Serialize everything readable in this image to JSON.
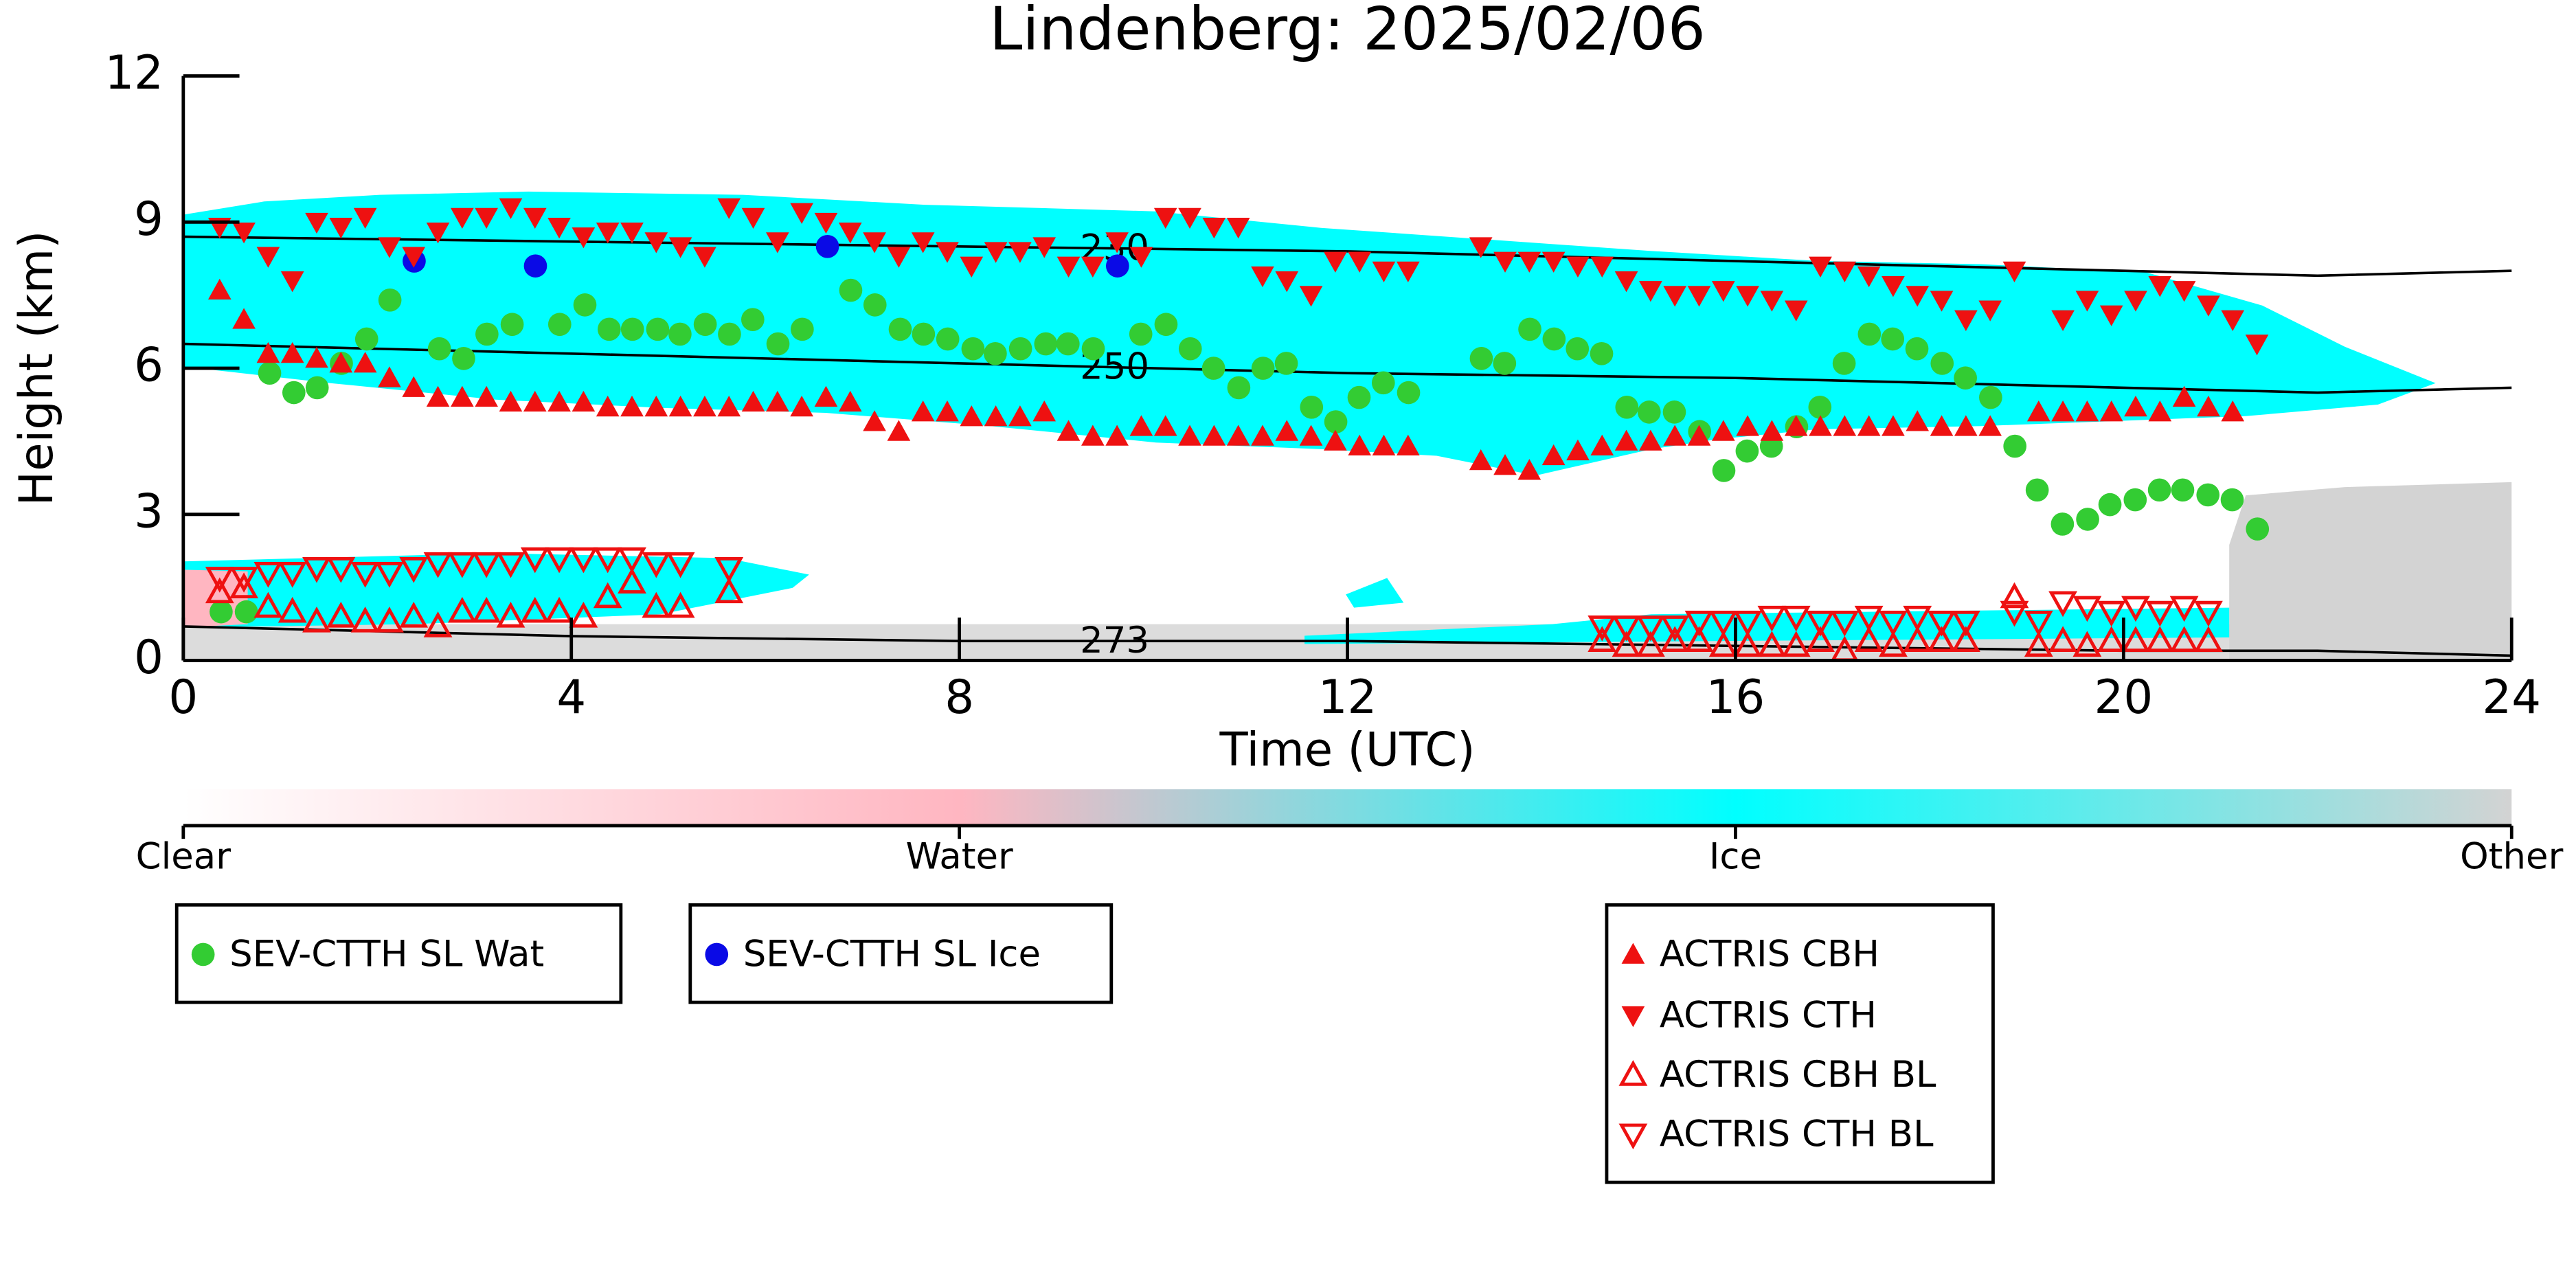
{
  "chart_data": {
    "type": "scatter",
    "title": "Lindenberg: 2025/02/06",
    "xlabel": "Time (UTC)",
    "ylabel": "Height (km)",
    "xlim": [
      0,
      24
    ],
    "xticks": [
      0,
      4,
      8,
      12,
      16,
      20,
      24
    ],
    "ylim": [
      0,
      12
    ],
    "yticks": [
      0,
      3,
      6,
      9,
      12
    ],
    "contours": [
      {
        "level": 230,
        "x": [
          0,
          4,
          8,
          12,
          16,
          20,
          22,
          24
        ],
        "y": [
          8.7,
          8.6,
          8.5,
          8.4,
          8.2,
          8.0,
          7.9,
          8.0
        ]
      },
      {
        "level": 250,
        "x": [
          0,
          4,
          8,
          12,
          16,
          20,
          22,
          24
        ],
        "y": [
          6.5,
          6.3,
          6.1,
          5.9,
          5.8,
          5.6,
          5.5,
          5.6
        ]
      },
      {
        "level": 273,
        "x": [
          0,
          4,
          8,
          12,
          16,
          20,
          22,
          24
        ],
        "y": [
          0.7,
          0.5,
          0.4,
          0.4,
          0.3,
          0.2,
          0.2,
          0.1
        ]
      }
    ],
    "colorbar": {
      "labels": [
        "Clear",
        "Water",
        "Ice",
        "Other"
      ],
      "colors": [
        "#ffffff",
        "#ffb6c1",
        "#00ffff",
        "#d3d3d3"
      ]
    },
    "series": [
      {
        "name": "SEV-CTTH SL Wat",
        "color": "#33cc33",
        "marker": "circle",
        "filled": true,
        "x": [
          0.39,
          0.65,
          0.89,
          1.14,
          1.38,
          1.63,
          1.89,
          2.13,
          2.64,
          2.89,
          3.13,
          3.39,
          3.88,
          4.14,
          4.39,
          4.63,
          4.89,
          5.12,
          5.38,
          5.63,
          5.87,
          6.13,
          6.38,
          6.88,
          7.13,
          7.39,
          7.63,
          7.88,
          8.14,
          8.37,
          8.63,
          8.89,
          9.12,
          9.38,
          9.87,
          10.13,
          10.38,
          10.62,
          10.88,
          11.13,
          11.37,
          11.63,
          11.88,
          12.12,
          12.37,
          12.63,
          13.38,
          13.62,
          13.88,
          14.13,
          14.37,
          14.62,
          14.88,
          15.11,
          15.37,
          15.63,
          15.88,
          16.12,
          16.37,
          16.63,
          16.87,
          17.12,
          17.38,
          17.62,
          17.87,
          18.13,
          18.37,
          18.63,
          18.88,
          19.11,
          19.37,
          19.63,
          19.86,
          20.12,
          20.37,
          20.61,
          20.87,
          21.12,
          21.38
        ],
        "y": [
          1.0,
          1.0,
          5.9,
          5.5,
          5.6,
          6.1,
          6.6,
          7.4,
          6.4,
          6.2,
          6.7,
          6.9,
          6.9,
          7.3,
          6.8,
          6.8,
          6.8,
          6.7,
          6.9,
          6.7,
          7.0,
          6.5,
          6.8,
          7.6,
          7.3,
          6.8,
          6.7,
          6.6,
          6.4,
          6.3,
          6.4,
          6.5,
          6.5,
          6.4,
          6.7,
          6.9,
          6.4,
          6.0,
          5.6,
          6.0,
          6.1,
          5.2,
          4.9,
          5.4,
          5.7,
          5.5,
          6.2,
          6.1,
          6.8,
          6.6,
          6.4,
          6.3,
          5.2,
          5.1,
          5.1,
          4.7,
          3.9,
          4.3,
          4.4,
          4.8,
          5.2,
          6.1,
          6.7,
          6.6,
          6.4,
          6.1,
          5.8,
          5.4,
          4.4,
          3.5,
          2.8,
          2.9,
          3.2,
          3.3,
          3.5,
          3.5,
          3.4,
          3.3,
          2.7
        ]
      },
      {
        "name": "SEV-CTTH SL Ice",
        "color": "#0a0ae6",
        "marker": "circle",
        "filled": true,
        "x": [
          2.38,
          3.63,
          6.64,
          9.63
        ],
        "y": [
          8.2,
          8.1,
          8.5,
          8.1
        ]
      },
      {
        "name": "ACTRIS CBH",
        "color": "#ee1111",
        "marker": "triangle-up",
        "filled": true,
        "x": [
          0.375,
          0.625,
          0.875,
          1.125,
          1.375,
          1.625,
          1.875,
          2.125,
          2.375,
          2.625,
          2.875,
          3.125,
          3.375,
          3.625,
          3.875,
          4.125,
          4.375,
          4.625,
          4.875,
          5.125,
          5.375,
          5.625,
          5.875,
          6.125,
          6.375,
          6.625,
          6.875,
          7.125,
          7.375,
          7.625,
          7.875,
          8.125,
          8.375,
          8.625,
          8.875,
          9.125,
          9.375,
          9.625,
          9.875,
          10.125,
          10.375,
          10.625,
          10.875,
          11.125,
          11.375,
          11.625,
          11.875,
          12.125,
          12.375,
          12.625,
          13.375,
          13.625,
          13.875,
          14.125,
          14.375,
          14.625,
          14.875,
          15.125,
          15.375,
          15.625,
          15.875,
          16.125,
          16.375,
          16.625,
          16.875,
          17.125,
          17.375,
          17.625,
          17.875,
          18.125,
          18.375,
          18.625,
          19.125,
          19.375,
          19.625,
          19.875,
          20.125,
          20.375,
          20.625,
          20.875,
          21.125
        ],
        "y": [
          7.6,
          7.0,
          6.3,
          6.3,
          6.2,
          6.1,
          6.1,
          5.8,
          5.6,
          5.4,
          5.4,
          5.4,
          5.3,
          5.3,
          5.3,
          5.3,
          5.2,
          5.2,
          5.2,
          5.2,
          5.2,
          5.2,
          5.3,
          5.3,
          5.2,
          5.4,
          5.3,
          4.9,
          4.7,
          5.1,
          5.1,
          5.0,
          5.0,
          5.0,
          5.1,
          4.7,
          4.6,
          4.6,
          4.8,
          4.8,
          4.6,
          4.6,
          4.6,
          4.6,
          4.7,
          4.6,
          4.5,
          4.4,
          4.4,
          4.4,
          4.1,
          4.0,
          3.9,
          4.2,
          4.3,
          4.4,
          4.5,
          4.5,
          4.6,
          4.6,
          4.7,
          4.8,
          4.7,
          4.8,
          4.8,
          4.8,
          4.8,
          4.8,
          4.9,
          4.8,
          4.8,
          4.8,
          5.1,
          5.1,
          5.1,
          5.1,
          5.2,
          5.1,
          5.4,
          5.2,
          5.1
        ]
      },
      {
        "name": "ACTRIS CTH",
        "color": "#ee1111",
        "marker": "triangle-down",
        "filled": true,
        "x": [
          0.375,
          0.625,
          0.875,
          1.125,
          1.375,
          1.625,
          1.875,
          2.125,
          2.375,
          2.625,
          2.875,
          3.125,
          3.375,
          3.625,
          3.875,
          4.125,
          4.375,
          4.625,
          4.875,
          5.125,
          5.375,
          5.625,
          5.875,
          6.125,
          6.375,
          6.625,
          6.875,
          7.125,
          7.375,
          7.625,
          7.875,
          8.125,
          8.375,
          8.625,
          8.875,
          9.125,
          9.375,
          9.625,
          9.875,
          10.125,
          10.375,
          10.625,
          10.875,
          11.125,
          11.375,
          11.625,
          11.875,
          12.125,
          12.375,
          12.625,
          13.375,
          13.625,
          13.875,
          14.125,
          14.375,
          14.625,
          14.875,
          15.125,
          15.375,
          15.625,
          15.875,
          16.125,
          16.375,
          16.625,
          16.875,
          17.125,
          17.375,
          17.625,
          17.875,
          18.125,
          18.375,
          18.625,
          18.875,
          19.375,
          19.625,
          19.875,
          20.125,
          20.375,
          20.625,
          20.875,
          21.125,
          21.375
        ],
        "y": [
          8.9,
          8.8,
          8.3,
          7.8,
          9.0,
          8.9,
          9.1,
          8.5,
          8.3,
          8.8,
          9.1,
          9.1,
          9.3,
          9.1,
          8.9,
          8.7,
          8.8,
          8.8,
          8.6,
          8.5,
          8.3,
          9.3,
          9.1,
          8.6,
          9.2,
          9.0,
          8.8,
          8.6,
          8.3,
          8.6,
          8.4,
          8.1,
          8.4,
          8.4,
          8.5,
          8.1,
          8.1,
          8.6,
          8.3,
          9.1,
          9.1,
          8.9,
          8.9,
          7.9,
          7.8,
          7.5,
          8.2,
          8.2,
          8.0,
          8.0,
          8.5,
          8.2,
          8.2,
          8.2,
          8.1,
          8.1,
          7.8,
          7.6,
          7.5,
          7.5,
          7.6,
          7.5,
          7.4,
          7.2,
          8.1,
          8.0,
          7.9,
          7.7,
          7.5,
          7.4,
          7.0,
          7.2,
          8.0,
          7.0,
          7.4,
          7.1,
          7.4,
          7.7,
          7.6,
          7.3,
          7.0,
          6.5
        ]
      },
      {
        "name": "ACTRIS CBH BL",
        "color": "#ee1111",
        "marker": "triangle-up",
        "filled": false,
        "x": [
          0.375,
          0.625,
          0.875,
          1.125,
          1.375,
          1.625,
          1.875,
          2.125,
          2.375,
          2.625,
          2.875,
          3.125,
          3.375,
          3.625,
          3.875,
          4.125,
          4.375,
          4.625,
          4.875,
          5.125,
          5.625,
          14.625,
          14.875,
          15.125,
          15.375,
          15.625,
          15.875,
          16.125,
          16.375,
          16.625,
          16.875,
          17.125,
          17.375,
          17.625,
          17.875,
          18.125,
          18.375,
          18.875,
          19.125,
          19.375,
          19.625,
          19.875,
          20.125,
          20.375,
          20.625,
          20.875
        ],
        "y": [
          1.4,
          1.5,
          1.1,
          1.0,
          0.8,
          0.9,
          0.8,
          0.8,
          0.9,
          0.7,
          1.0,
          1.0,
          0.9,
          1.0,
          1.0,
          0.9,
          1.3,
          1.6,
          1.1,
          1.1,
          1.4,
          0.4,
          0.3,
          0.3,
          0.4,
          0.4,
          0.3,
          0.3,
          0.3,
          0.3,
          0.4,
          0.2,
          0.4,
          0.3,
          0.4,
          0.4,
          0.4,
          1.3,
          0.3,
          0.4,
          0.3,
          0.4,
          0.4,
          0.4,
          0.4,
          0.4
        ]
      },
      {
        "name": "ACTRIS CTH BL",
        "color": "#ee1111",
        "marker": "triangle-down",
        "filled": false,
        "x": [
          0.375,
          0.625,
          0.875,
          1.125,
          1.375,
          1.625,
          1.875,
          2.125,
          2.375,
          2.625,
          2.875,
          3.125,
          3.375,
          3.625,
          3.875,
          4.125,
          4.375,
          4.625,
          4.875,
          5.125,
          5.625,
          14.625,
          14.875,
          15.125,
          15.375,
          15.625,
          15.875,
          16.125,
          16.375,
          16.625,
          16.875,
          17.125,
          17.375,
          17.625,
          17.875,
          18.125,
          18.375,
          18.875,
          19.125,
          19.375,
          19.625,
          19.875,
          20.125,
          20.375,
          20.625,
          20.875
        ],
        "y": [
          1.7,
          1.7,
          1.8,
          1.8,
          1.9,
          1.9,
          1.8,
          1.8,
          1.9,
          2.0,
          2.0,
          2.0,
          2.0,
          2.1,
          2.1,
          2.1,
          2.1,
          2.1,
          2.0,
          2.0,
          1.9,
          0.7,
          0.7,
          0.7,
          0.7,
          0.8,
          0.8,
          0.8,
          0.9,
          0.9,
          0.8,
          0.8,
          0.9,
          0.8,
          0.9,
          0.8,
          0.8,
          1.0,
          0.8,
          1.2,
          1.1,
          1.0,
          1.1,
          1.0,
          1.1,
          1.0
        ]
      }
    ]
  }
}
